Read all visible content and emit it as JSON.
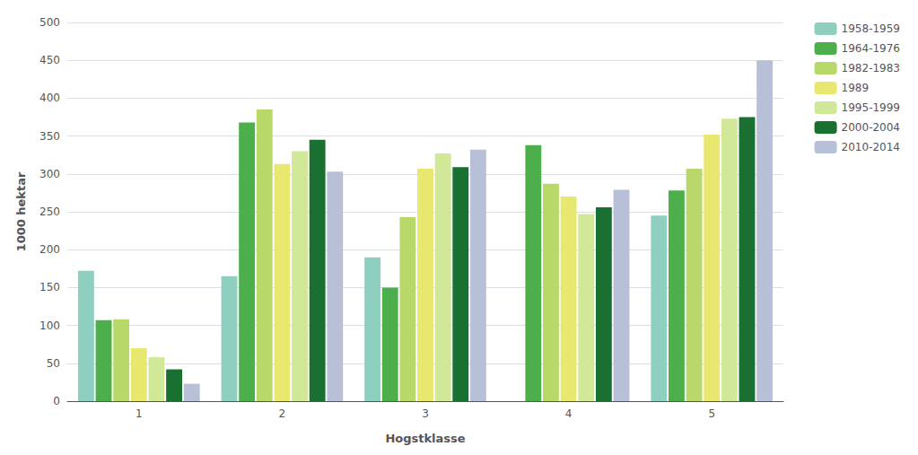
{
  "chart_data": {
    "type": "bar",
    "xlabel": "Hogstklasse",
    "ylabel": "1000 hektar",
    "categories": [
      "1",
      "2",
      "3",
      "4",
      "5"
    ],
    "series": [
      {
        "name": "1958-1959",
        "color": "#8ECFC0",
        "values": [
          172,
          165,
          190,
          0,
          245
        ]
      },
      {
        "name": "1964-1976",
        "color": "#4CAF4C",
        "values": [
          107,
          368,
          150,
          338,
          278
        ]
      },
      {
        "name": "1982-1983",
        "color": "#B8D96A",
        "values": [
          108,
          385,
          243,
          287,
          307
        ]
      },
      {
        "name": "1989",
        "color": "#E8E870",
        "values": [
          70,
          313,
          307,
          270,
          352
        ]
      },
      {
        "name": "1995-1999",
        "color": "#D0E898",
        "values": [
          58,
          330,
          327,
          247,
          373
        ]
      },
      {
        "name": "2000-2004",
        "color": "#1A7030",
        "values": [
          42,
          345,
          309,
          256,
          375
        ]
      },
      {
        "name": "2010-2014",
        "color": "#B8C0D8",
        "values": [
          23,
          303,
          332,
          279,
          450
        ]
      }
    ],
    "ylim": [
      0,
      500
    ],
    "yticks": [
      0,
      50,
      100,
      150,
      200,
      250,
      300,
      350,
      400,
      450,
      500
    ],
    "grid": true,
    "legend": "right"
  }
}
